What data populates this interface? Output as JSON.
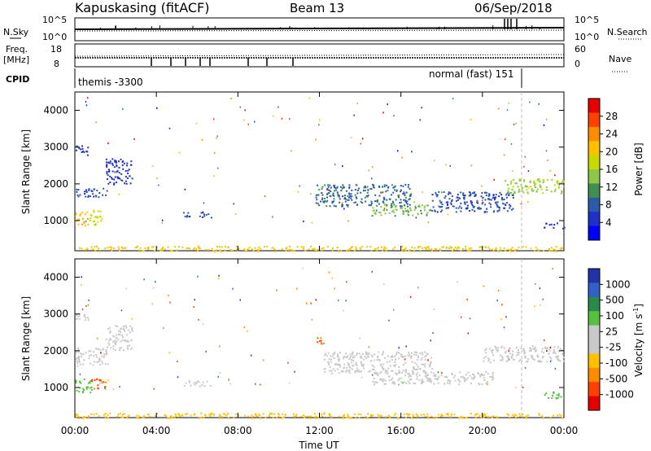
{
  "header": {
    "station": "Kapuskasing (fitACF)",
    "beam": "Beam 13",
    "date": "06/Sep/2018"
  },
  "panels": {
    "nsky": {
      "label": "N.Sky",
      "left_ticks": [
        "10^5",
        "10^0"
      ],
      "right_label": "N.Search",
      "right_ticks": [
        "10^5",
        "10^0"
      ]
    },
    "freq": {
      "label_line1": "Freq.",
      "label_line2": "[MHz]",
      "left_ticks": [
        "18",
        "8"
      ],
      "right_label": "Nave",
      "right_ticks": [
        "60",
        "0"
      ]
    },
    "cpid": {
      "label": "CPID",
      "mode1": "themis -3300",
      "mode2": "normal (fast) 151"
    }
  },
  "colorbars": {
    "power": {
      "title": "Power [dB]",
      "ticks": [
        "28",
        "24",
        "20",
        "16",
        "12",
        "8",
        "4"
      ],
      "colors": [
        "#e60000",
        "#ff4000",
        "#ff8c00",
        "#ffc000",
        "#c8d800",
        "#8ec84a",
        "#3f8f4f",
        "#2a5aa8",
        "#1f30c8",
        "#0000ff"
      ]
    },
    "velocity": {
      "title": "Velocity [m s",
      "title_sup": "-1",
      "title_end": "]",
      "ticks": [
        "1000",
        "500",
        "100",
        "25",
        "-25",
        "-100",
        "-500",
        "-1000"
      ],
      "colors": [
        "#2233aa",
        "#3060c8",
        "#2a8a4a",
        "#58c040",
        "#c8c8c8",
        "#c8c8c8",
        "#ffc000",
        "#ff8c00",
        "#ff4000",
        "#e60000"
      ]
    }
  },
  "chart_data": [
    {
      "type": "heatmap",
      "title": "Power",
      "xlabel": "Time UT",
      "ylabel": "Slant Range [km]",
      "x_ticks": [
        "00:00",
        "04:00",
        "08:00",
        "12:00",
        "16:00",
        "20:00",
        "00:00"
      ],
      "y_ticks": [
        "1000",
        "2000",
        "3000",
        "4000"
      ],
      "xlim": [
        0,
        24
      ],
      "ylim": [
        180,
        4500
      ],
      "colorbar": "Power [dB]",
      "regions": [
        {
          "t0": 0.0,
          "t1": 0.6,
          "r0": 850,
          "r1": 1250,
          "value": 22
        },
        {
          "t0": 0.6,
          "t1": 1.3,
          "r0": 900,
          "r1": 1300,
          "value": 18
        },
        {
          "t0": 0.0,
          "t1": 1.6,
          "r0": 1650,
          "r1": 1900,
          "value": 8
        },
        {
          "t0": 0.0,
          "t1": 0.7,
          "r0": 2800,
          "r1": 3050,
          "value": 6
        },
        {
          "t0": 1.5,
          "t1": 2.8,
          "r0": 2000,
          "r1": 2700,
          "value": 6
        },
        {
          "t0": 5.3,
          "t1": 6.7,
          "r0": 1100,
          "r1": 1250,
          "value": 8
        },
        {
          "t0": 11.8,
          "t1": 16.5,
          "r0": 1400,
          "r1": 2000,
          "value": 10
        },
        {
          "t0": 14.5,
          "t1": 17.5,
          "r0": 1150,
          "r1": 1450,
          "value": 14
        },
        {
          "t0": 17.5,
          "t1": 21.5,
          "r0": 1250,
          "r1": 1800,
          "value": 8
        },
        {
          "t0": 21.0,
          "t1": 24.0,
          "r0": 1750,
          "r1": 2150,
          "value": 16
        },
        {
          "t0": 23.0,
          "t1": 24.0,
          "r0": 800,
          "r1": 950,
          "value": 6
        },
        {
          "t0": 0.0,
          "t1": 24.0,
          "r0": 180,
          "r1": 320,
          "value": 20
        }
      ]
    },
    {
      "type": "heatmap",
      "title": "Velocity",
      "xlabel": "Time UT",
      "ylabel": "Slant Range [km]",
      "x_ticks": [
        "00:00",
        "04:00",
        "08:00",
        "12:00",
        "16:00",
        "20:00",
        "00:00"
      ],
      "y_ticks": [
        "1000",
        "2000",
        "3000",
        "4000"
      ],
      "xlim": [
        0,
        24
      ],
      "ylim": [
        180,
        4500
      ],
      "colorbar": "Velocity [m s-1]",
      "regions": [
        {
          "t0": 0.0,
          "t1": 0.8,
          "r0": 850,
          "r1": 1250,
          "value": 50
        },
        {
          "t0": 0.8,
          "t1": 1.6,
          "r0": 950,
          "r1": 1250,
          "value": -300
        },
        {
          "t0": 0.0,
          "t1": 1.6,
          "r0": 1600,
          "r1": 2100,
          "value": 0
        },
        {
          "t0": 0.0,
          "t1": 0.7,
          "r0": 2800,
          "r1": 3050,
          "value": 0
        },
        {
          "t0": 1.5,
          "t1": 2.8,
          "r0": 2000,
          "r1": 2700,
          "value": 0
        },
        {
          "t0": 5.3,
          "t1": 6.7,
          "r0": 1050,
          "r1": 1200,
          "value": 0
        },
        {
          "t0": 11.8,
          "t1": 12.2,
          "r0": 2150,
          "r1": 2400,
          "value": -300
        },
        {
          "t0": 12.2,
          "t1": 17.5,
          "r0": 1400,
          "r1": 2000,
          "value": 0
        },
        {
          "t0": 14.5,
          "t1": 20.5,
          "r0": 1100,
          "r1": 1450,
          "value": 0
        },
        {
          "t0": 20.0,
          "t1": 24.0,
          "r0": 1700,
          "r1": 2150,
          "value": 0
        },
        {
          "t0": 23.0,
          "t1": 24.0,
          "r0": 700,
          "r1": 900,
          "value": 60
        },
        {
          "t0": 0.0,
          "t1": 24.0,
          "r0": 180,
          "r1": 320,
          "value": -60
        }
      ]
    }
  ]
}
